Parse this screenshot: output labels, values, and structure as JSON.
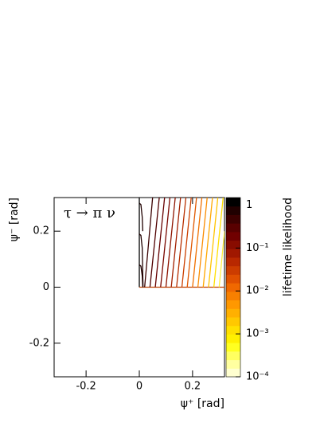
{
  "chart_data": {
    "type": "contour",
    "annotation": "τ → π ν",
    "x_label": "ψ⁺ [rad]",
    "y_label": "ψ⁻ [rad]",
    "xlim": [
      -0.32,
      0.32
    ],
    "ylim": [
      -0.32,
      0.32
    ],
    "xticks": [
      -0.2,
      0,
      0.2
    ],
    "yticks": [
      -0.2,
      0,
      0.2
    ],
    "contours": [
      {
        "color": "#000000",
        "x": [
          0,
          0
        ],
        "y": [
          0,
          0.32
        ]
      },
      {
        "color": "#c04000",
        "x": [
          0,
          0.32
        ],
        "y": [
          0,
          0
        ]
      },
      {
        "color": "#200000",
        "x": [
          0,
          0.006,
          0.011,
          0.013
        ],
        "y": [
          0.08,
          0.075,
          0.04,
          0
        ]
      },
      {
        "color": "#200000",
        "x": [
          0,
          0.006,
          0.011,
          0.014
        ],
        "y": [
          0.19,
          0.185,
          0.14,
          0
        ]
      },
      {
        "color": "#200000",
        "x": [
          0,
          0.006,
          0.011,
          0.013
        ],
        "y": [
          0.3,
          0.295,
          0.25,
          0.2
        ]
      },
      {
        "color": "#3a0000",
        "x": [
          0.02,
          0.05
        ],
        "y": [
          0,
          0.32
        ]
      },
      {
        "color": "#500000",
        "x": [
          0.04,
          0.075
        ],
        "y": [
          0,
          0.32
        ]
      },
      {
        "color": "#660000",
        "x": [
          0.06,
          0.095
        ],
        "y": [
          0,
          0.32
        ]
      },
      {
        "color": "#7a0800",
        "x": [
          0.08,
          0.115
        ],
        "y": [
          0,
          0.32
        ]
      },
      {
        "color": "#8e1400",
        "x": [
          0.1,
          0.135
        ],
        "y": [
          0,
          0.32
        ]
      },
      {
        "color": "#a32000",
        "x": [
          0.12,
          0.155
        ],
        "y": [
          0,
          0.32
        ]
      },
      {
        "color": "#b83000",
        "x": [
          0.14,
          0.175
        ],
        "y": [
          0,
          0.32
        ]
      },
      {
        "color": "#cc4000",
        "x": [
          0.16,
          0.195
        ],
        "y": [
          0,
          0.32
        ]
      },
      {
        "color": "#e05800",
        "x": [
          0.18,
          0.215
        ],
        "y": [
          0,
          0.32
        ]
      },
      {
        "color": "#f07000",
        "x": [
          0.2,
          0.235
        ],
        "y": [
          0,
          0.32
        ]
      },
      {
        "color": "#fa8c00",
        "x": [
          0.22,
          0.255
        ],
        "y": [
          0,
          0.32
        ]
      },
      {
        "color": "#ffa800",
        "x": [
          0.24,
          0.275
        ],
        "y": [
          0,
          0.32
        ]
      },
      {
        "color": "#ffc400",
        "x": [
          0.26,
          0.295
        ],
        "y": [
          0,
          0.32
        ]
      },
      {
        "color": "#ffe000",
        "x": [
          0.28,
          0.315
        ],
        "y": [
          0,
          0.32
        ]
      },
      {
        "color": "#fff040",
        "x": [
          0.3,
          0.32
        ],
        "y": [
          0,
          0.2
        ]
      }
    ],
    "colorbar": {
      "label": "lifetime likelihood",
      "log": true,
      "zlim": [
        0.0001,
        1.5
      ],
      "ticks": [
        {
          "value": 1,
          "label": "1"
        },
        {
          "value": 0.1,
          "label": "10⁻¹"
        },
        {
          "value": 0.01,
          "label": "10⁻²"
        },
        {
          "value": 0.001,
          "label": "10⁻³"
        },
        {
          "value": 0.0001,
          "label": "10⁻⁴"
        }
      ],
      "colors": [
        "#ffffd0",
        "#ffffa0",
        "#ffff60",
        "#ffff20",
        "#fff000",
        "#ffe000",
        "#ffc800",
        "#ffb000",
        "#ff9800",
        "#f88000",
        "#f06800",
        "#e05000",
        "#cc3c00",
        "#b82800",
        "#a01800",
        "#880c00",
        "#700000",
        "#580000",
        "#3c0000",
        "#200000",
        "#000000"
      ]
    }
  }
}
